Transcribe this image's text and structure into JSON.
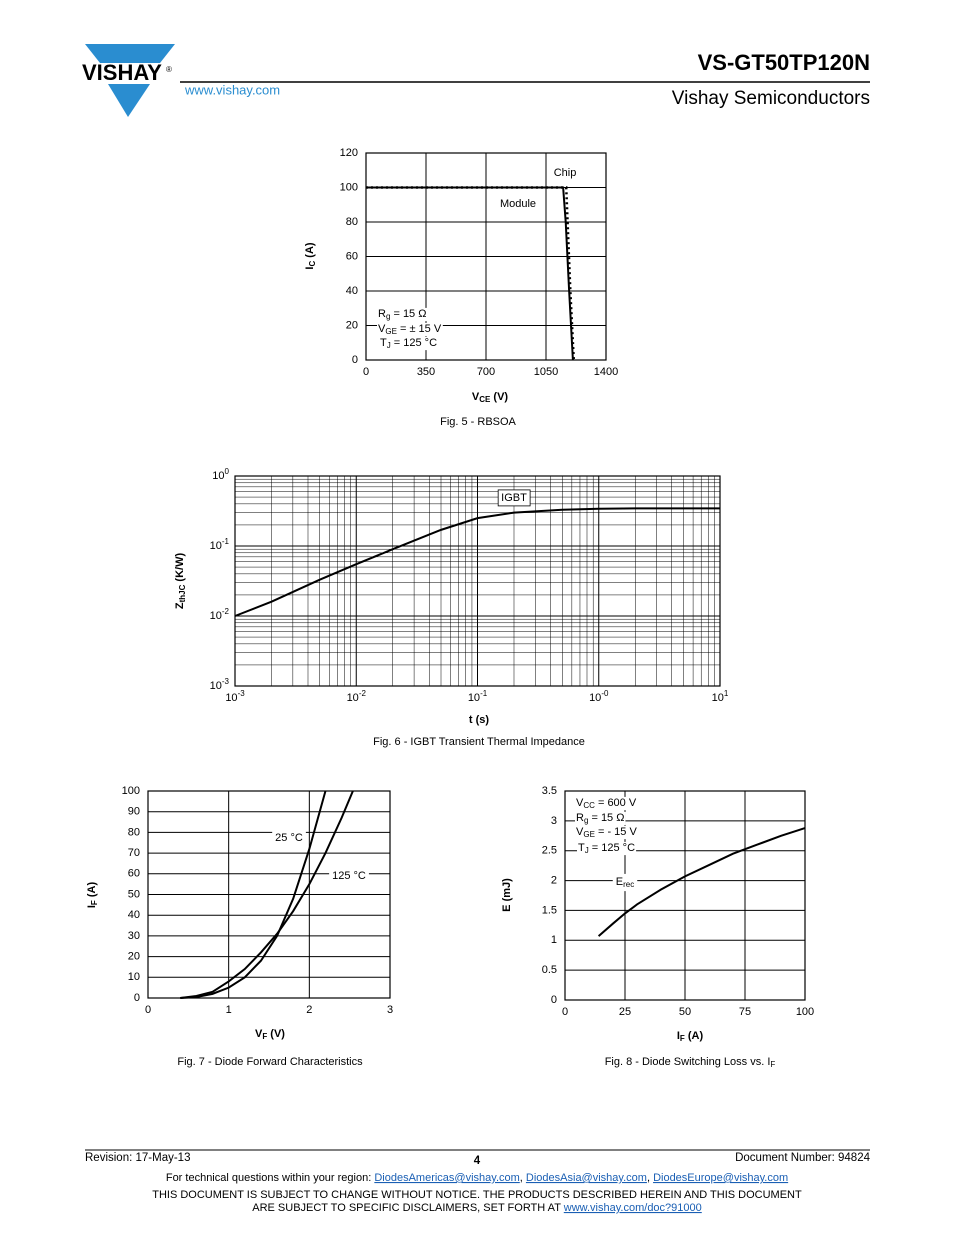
{
  "header": {
    "logo": "VISHAY",
    "registered": "®",
    "url": "www.vishay.com",
    "part": "VS-GT50TP120N",
    "company": "Vishay Semiconductors"
  },
  "chart_data": [
    {
      "type": "line",
      "caption": [
        "Fig. 5 - RBSOA"
      ],
      "xlabel": [
        "V",
        "CE",
        " (V)"
      ],
      "ylabel": [
        "I",
        "C",
        " (A)"
      ],
      "xlim": [
        0,
        1400
      ],
      "xticks": [
        0,
        350,
        700,
        1050,
        1400
      ],
      "ylim": [
        0,
        120
      ],
      "yticks": [
        0,
        20,
        40,
        60,
        80,
        100,
        120
      ],
      "grid": true,
      "series": [
        {
          "name": [
            "Module"
          ],
          "color": "#000000",
          "style": "solid",
          "x": [
            0,
            1150,
            1165,
            1185,
            1207
          ],
          "values": [
            100,
            100,
            80,
            40,
            0
          ]
        },
        {
          "name": [
            "Chip"
          ],
          "color": "#000000",
          "style": "dotted",
          "x": [
            0,
            1168,
            1176,
            1192,
            1212
          ],
          "values": [
            100,
            100,
            80,
            40,
            0
          ]
        }
      ],
      "annotations": [
        [
          "R",
          "g",
          " = 15 Ω"
        ],
        [
          "V",
          "GE",
          " = ± 15 V"
        ],
        [
          "T",
          "J",
          " = 125 °C"
        ]
      ]
    },
    {
      "type": "line",
      "caption": [
        "Fig. 6 - IGBT Transient Thermal Impedance"
      ],
      "xlabel": [
        "t (s)"
      ],
      "ylabel": [
        "Z",
        "thJC",
        " (K/W)"
      ],
      "xscale": "log",
      "yscale": "log",
      "minor_grid": true,
      "grid": true,
      "xlim": [
        0.001,
        10
      ],
      "xticks": [
        {
          "value": 0.001,
          "label": [
            "10",
            "-3"
          ]
        },
        {
          "value": 0.01,
          "label": [
            "10",
            "-2"
          ]
        },
        {
          "value": 0.1,
          "label": [
            "10",
            "-1"
          ]
        },
        {
          "value": 1,
          "label": [
            "10",
            "-0"
          ]
        },
        {
          "value": 10,
          "label": [
            "10",
            "1"
          ]
        }
      ],
      "ylim": [
        0.001,
        1
      ],
      "yticks": [
        {
          "value": 0.001,
          "label": [
            "10",
            "-3"
          ]
        },
        {
          "value": 0.01,
          "label": [
            "10",
            "-2"
          ]
        },
        {
          "value": 0.1,
          "label": [
            "10",
            "-1"
          ]
        },
        {
          "value": 1,
          "label": [
            "10",
            "0"
          ]
        }
      ],
      "series": [
        {
          "name": [
            "IGBT"
          ],
          "color": "#000000",
          "style": "solid",
          "x": [
            0.001,
            0.002,
            0.005,
            0.01,
            0.02,
            0.05,
            0.1,
            0.2,
            0.5,
            1,
            2,
            5,
            10
          ],
          "values": [
            0.01,
            0.016,
            0.033,
            0.055,
            0.09,
            0.17,
            0.25,
            0.3,
            0.33,
            0.34,
            0.345,
            0.345,
            0.345
          ]
        }
      ]
    },
    {
      "type": "line",
      "caption": [
        "Fig. 7 - Diode Forward Characteristics"
      ],
      "xlabel": [
        "V",
        "F",
        " (V)"
      ],
      "ylabel": [
        "I",
        "F",
        " (A)"
      ],
      "xlim": [
        0,
        3
      ],
      "xticks": [
        0,
        1,
        2,
        3
      ],
      "ylim": [
        0,
        100
      ],
      "yticks": [
        0,
        10,
        20,
        30,
        40,
        50,
        60,
        70,
        80,
        90,
        100
      ],
      "grid": true,
      "series": [
        {
          "name": [
            "25 °C"
          ],
          "color": "#000000",
          "style": "solid",
          "x": [
            0.4,
            0.6,
            0.8,
            1.0,
            1.2,
            1.4,
            1.6,
            1.8,
            2.0,
            2.2
          ],
          "values": [
            0,
            0.5,
            2,
            5,
            10,
            18,
            30,
            48,
            72,
            100
          ]
        },
        {
          "name": [
            "125 °C"
          ],
          "color": "#000000",
          "style": "solid",
          "x": [
            0.4,
            0.6,
            0.8,
            1.0,
            1.2,
            1.4,
            1.6,
            1.8,
            2.0,
            2.2,
            2.4,
            2.54
          ],
          "values": [
            0,
            1,
            3,
            8,
            14,
            22,
            31,
            42,
            55,
            70,
            87,
            100
          ]
        }
      ]
    },
    {
      "type": "line",
      "caption": [
        "Fig. 8 - Diode Switching Loss vs. I",
        "F"
      ],
      "xlabel": [
        "I",
        "F",
        " (A)"
      ],
      "ylabel": [
        "E (mJ)"
      ],
      "xlim": [
        0,
        100
      ],
      "xticks": [
        0,
        25,
        50,
        75,
        100
      ],
      "ylim": [
        0,
        3.5
      ],
      "yticks": [
        0,
        0.5,
        1,
        1.5,
        2,
        2.5,
        3,
        3.5
      ],
      "grid": true,
      "series": [
        {
          "name": [
            "E",
            "rec"
          ],
          "color": "#000000",
          "style": "solid",
          "x": [
            14,
            20,
            25,
            30,
            40,
            50,
            60,
            70,
            80,
            90,
            100
          ],
          "values": [
            1.07,
            1.28,
            1.45,
            1.6,
            1.85,
            2.07,
            2.26,
            2.45,
            2.6,
            2.75,
            2.88
          ]
        }
      ],
      "annotations": [
        [
          "V",
          "CC",
          " = 600 V"
        ],
        [
          "R",
          "g",
          " = 15 Ω"
        ],
        [
          "V",
          "GE",
          " = - 15 V"
        ],
        [
          "T",
          "J",
          " = 125 °C"
        ]
      ]
    }
  ],
  "footer": {
    "revision": "Revision: 17-May-13",
    "page": "4",
    "document": "Document Number: 94824",
    "questions": [
      "For technical questions within your region: ",
      "DiodesAmericas@vishay.com",
      ", ",
      "DiodesAsia@vishay.com",
      ", ",
      "DiodesEurope@vishay.com"
    ],
    "disclaimer": [
      "THIS DOCUMENT IS SUBJECT TO CHANGE WITHOUT NOTICE. THE PRODUCTS DESCRIBED HEREIN AND THIS DOCUMENT"
    ],
    "disclaimer_link": [
      "ARE SUBJECT TO SPECIFIC DISCLAIMERS, SET FORTH AT ",
      "www.vishay.com/doc?91000"
    ]
  }
}
